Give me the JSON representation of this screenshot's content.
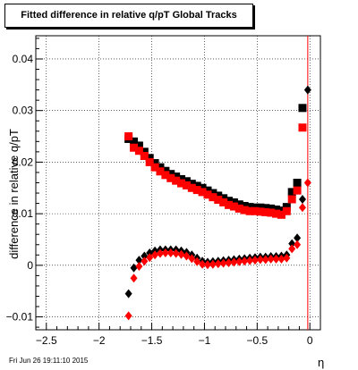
{
  "chart_data": {
    "type": "scatter",
    "title": "Fitted difference in relative q/pT  Global Tracks",
    "xlabel": "η",
    "ylabel": "difference in relative q/pT",
    "xlim": [
      -2.6,
      0.1
    ],
    "ylim": [
      -0.0125,
      0.0445
    ],
    "xticks": [
      -2.5,
      -2,
      -1.5,
      -1,
      -0.5,
      0
    ],
    "xtick_labels": [
      "−2.5",
      "−2",
      "−1.5",
      "−1",
      "−0.5",
      "0"
    ],
    "yticks": [
      -0.01,
      0,
      0.01,
      0.02,
      0.03,
      0.04
    ],
    "ytick_labels": [
      "−0.01",
      "0",
      "0.01",
      "0.02",
      "0.03",
      "0.04"
    ],
    "grid": true,
    "vline_x": -0.02,
    "timestamp": "Fri Jun 26 19:11:10 2015",
    "series": [
      {
        "marker": "square",
        "color": "#000000",
        "x": [
          -1.72,
          -1.67,
          -1.62,
          -1.57,
          -1.52,
          -1.47,
          -1.42,
          -1.37,
          -1.32,
          -1.27,
          -1.22,
          -1.17,
          -1.12,
          -1.07,
          -1.02,
          -0.97,
          -0.92,
          -0.87,
          -0.82,
          -0.77,
          -0.72,
          -0.67,
          -0.62,
          -0.57,
          -0.52,
          -0.47,
          -0.42,
          -0.37,
          -0.32,
          -0.27,
          -0.22,
          -0.17,
          -0.12,
          -0.07
        ],
        "y": [
          0.0245,
          0.024,
          0.0232,
          0.022,
          0.0208,
          0.0198,
          0.019,
          0.0183,
          0.0177,
          0.0172,
          0.0167,
          0.0163,
          0.0158,
          0.0154,
          0.015,
          0.0145,
          0.014,
          0.0135,
          0.013,
          0.0125,
          0.0122,
          0.0118,
          0.0115,
          0.0113,
          0.0112,
          0.0112,
          0.0111,
          0.011,
          0.0108,
          0.0106,
          0.0113,
          0.0142,
          0.016,
          0.0305
        ]
      },
      {
        "marker": "square",
        "color": "#ff0000",
        "x": [
          -1.72,
          -1.67,
          -1.62,
          -1.57,
          -1.52,
          -1.47,
          -1.42,
          -1.37,
          -1.32,
          -1.27,
          -1.22,
          -1.17,
          -1.12,
          -1.07,
          -1.02,
          -0.97,
          -0.92,
          -0.87,
          -0.82,
          -0.77,
          -0.72,
          -0.67,
          -0.62,
          -0.57,
          -0.52,
          -0.47,
          -0.42,
          -0.37,
          -0.32,
          -0.27,
          -0.22,
          -0.17,
          -0.12,
          -0.07
        ],
        "y": [
          0.025,
          0.0228,
          0.0222,
          0.0212,
          0.02,
          0.019,
          0.0182,
          0.0175,
          0.0169,
          0.0164,
          0.0159,
          0.0155,
          0.015,
          0.0146,
          0.0142,
          0.0137,
          0.0132,
          0.0127,
          0.0122,
          0.0117,
          0.0114,
          0.011,
          0.0107,
          0.0105,
          0.0105,
          0.0104,
          0.0103,
          0.0102,
          0.01,
          0.0098,
          0.0105,
          0.0128,
          0.0145,
          0.0267
        ]
      },
      {
        "marker": "circle",
        "color": "#000000",
        "x": [
          -1.72,
          -1.67,
          -1.62,
          -1.57,
          -1.52,
          -1.47,
          -1.42,
          -1.37,
          -1.32,
          -1.27,
          -1.22,
          -1.17,
          -1.12,
          -1.07,
          -1.02,
          -0.97,
          -0.92,
          -0.87,
          -0.82,
          -0.77,
          -0.72,
          -0.67,
          -0.62,
          -0.57,
          -0.52,
          -0.47,
          -0.42,
          -0.37,
          -0.32,
          -0.27,
          -0.22,
          -0.17,
          -0.12,
          -0.07,
          -0.02
        ],
        "y": [
          -0.0055,
          -0.0005,
          0.001,
          0.0018,
          0.0024,
          0.0028,
          0.003,
          0.003,
          0.003,
          0.003,
          0.0028,
          0.0025,
          0.002,
          0.0014,
          0.0008,
          0.0006,
          0.0007,
          0.0008,
          0.0009,
          0.001,
          0.0011,
          0.0012,
          0.0013,
          0.0014,
          0.0015,
          0.0016,
          0.0016,
          0.0017,
          0.0017,
          0.0018,
          0.002,
          0.0042,
          0.0053,
          0.0128,
          0.034
        ]
      },
      {
        "marker": "circle",
        "color": "#ff0000",
        "x": [
          -1.72,
          -1.67,
          -1.62,
          -1.57,
          -1.52,
          -1.47,
          -1.42,
          -1.37,
          -1.32,
          -1.27,
          -1.22,
          -1.17,
          -1.12,
          -1.07,
          -1.02,
          -0.97,
          -0.92,
          -0.87,
          -0.82,
          -0.77,
          -0.72,
          -0.67,
          -0.62,
          -0.57,
          -0.52,
          -0.47,
          -0.42,
          -0.37,
          -0.32,
          -0.27,
          -0.22,
          -0.17,
          -0.12,
          -0.07,
          -0.02
        ],
        "y": [
          -0.0098,
          -0.0025,
          -0.0002,
          0.0008,
          0.0015,
          0.002,
          0.0023,
          0.0024,
          0.0024,
          0.0023,
          0.0021,
          0.0018,
          0.0013,
          0.0007,
          0.0002,
          0.0001,
          0.0002,
          0.0003,
          0.0004,
          0.0005,
          0.0006,
          0.0007,
          0.0008,
          0.0009,
          0.001,
          0.0011,
          0.0011,
          0.0012,
          0.0012,
          0.0012,
          0.0014,
          0.0032,
          0.004,
          0.0112,
          0.016
        ]
      }
    ]
  }
}
